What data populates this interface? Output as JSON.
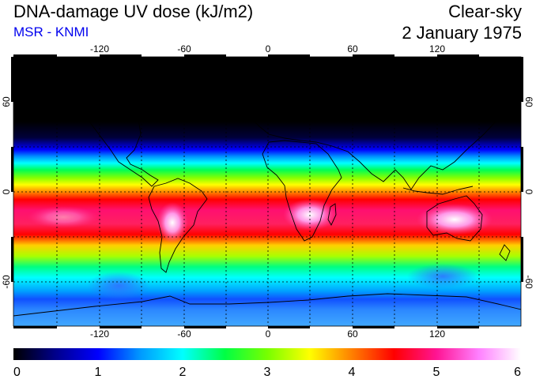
{
  "header": {
    "title": "DNA-damage UV dose (kJ/m2)",
    "source": "MSR - KNMI",
    "condition": "Clear-sky",
    "date": "2 January 1975"
  },
  "map": {
    "projection": "equirectangular",
    "lon_range": [
      -180,
      180
    ],
    "lat_range": [
      -90,
      90
    ],
    "lon_ticks": [
      "-120",
      "-60",
      "0",
      "60",
      "120"
    ],
    "lat_ticks": [
      "60",
      "0",
      "-60"
    ],
    "lon_tick_values": [
      -120,
      -60,
      0,
      60,
      120
    ],
    "lat_tick_values": [
      60,
      0,
      -60
    ],
    "gridlines": "dashed every 30 degrees",
    "field_description_colors": {
      "polar_night": "#000000",
      "low": "#0000ff",
      "mid": "#00ff00",
      "high": "#ff0000",
      "max": "#ffffff"
    }
  },
  "colorbar": {
    "min": 0,
    "max": 6,
    "tick_labels": [
      "0",
      "1",
      "2",
      "3",
      "4",
      "5",
      "6"
    ],
    "stops": [
      {
        "value": 0.0,
        "color": "#000000"
      },
      {
        "value": 0.5,
        "color": "#00008c"
      },
      {
        "value": 1.0,
        "color": "#0000ff"
      },
      {
        "value": 1.5,
        "color": "#0099ff"
      },
      {
        "value": 2.0,
        "color": "#00ffff"
      },
      {
        "value": 2.5,
        "color": "#00ff44"
      },
      {
        "value": 3.0,
        "color": "#77ff00"
      },
      {
        "value": 3.5,
        "color": "#ffff00"
      },
      {
        "value": 4.0,
        "color": "#ff8000"
      },
      {
        "value": 4.5,
        "color": "#ff0000"
      },
      {
        "value": 5.0,
        "color": "#ff1493"
      },
      {
        "value": 5.5,
        "color": "#ff80ff"
      },
      {
        "value": 6.0,
        "color": "#ffffff"
      }
    ]
  }
}
